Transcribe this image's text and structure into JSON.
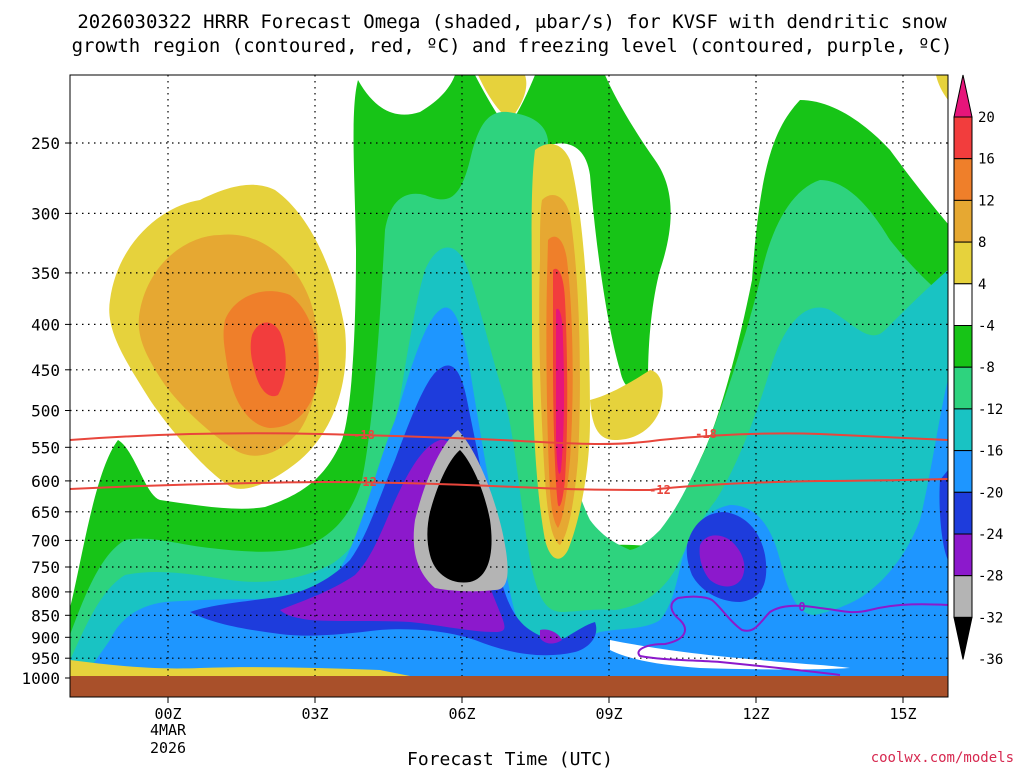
{
  "chart_data": {
    "type": "contour",
    "title": "2026030322 HRRR Forecast Omega (shaded, μbar/s) for KVSF with dendritic snow",
    "title_line2": "growth region (contoured, red, ºC) and freezing level (contoured, purple, ºC)",
    "xlabel": "Forecast Time (UTC)",
    "x_ticks": [
      "00Z",
      "03Z",
      "06Z",
      "09Z",
      "12Z",
      "15Z"
    ],
    "x_date": [
      "4MAR",
      "2026"
    ],
    "y_ticks": [
      250,
      300,
      350,
      400,
      450,
      500,
      550,
      600,
      650,
      700,
      750,
      800,
      850,
      900,
      950,
      1000
    ],
    "colorbar_ticks": [
      20,
      16,
      12,
      8,
      4,
      -4,
      -8,
      -12,
      -16,
      -20,
      -24,
      -28,
      -32,
      -36
    ],
    "colorbar_colors": [
      "#e6157a",
      "#f23d3d",
      "#ef7f2a",
      "#e6a832",
      "#e6d23c",
      "#ffffff",
      "#17c417",
      "#2ed37e",
      "#19c3c3",
      "#1e96ff",
      "#1e3cdc",
      "#8c19cc",
      "#b4b4b4",
      "#000000"
    ],
    "temperature_contours": [
      {
        "label": "-18",
        "color": "#e8463c"
      },
      {
        "label": "-12",
        "color": "#e8463c"
      },
      {
        "label": "0",
        "color": "#8c19cc"
      }
    ],
    "ground_color": "#a9502a",
    "credit": "coolwx.com/models"
  }
}
